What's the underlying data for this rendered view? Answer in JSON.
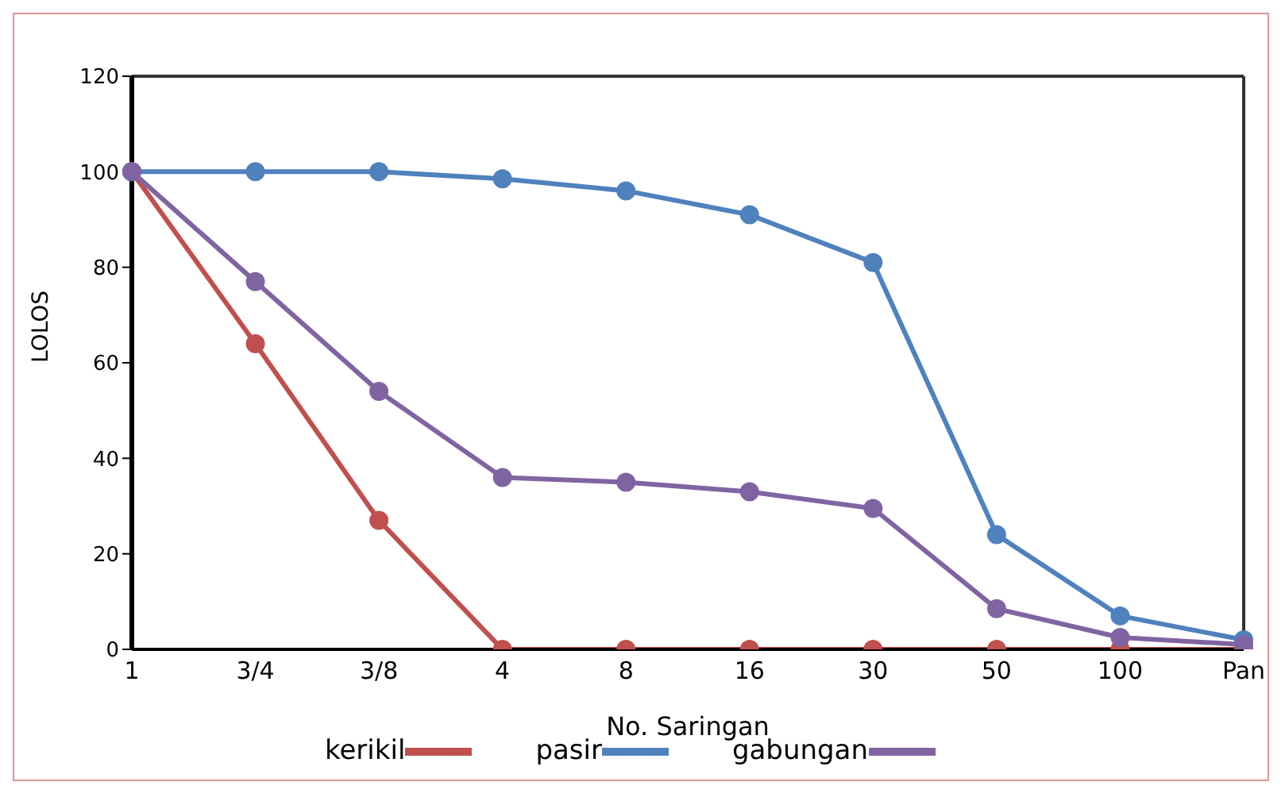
{
  "chart_data": {
    "type": "line",
    "xlabel": "No. Saringan",
    "ylabel": "LOLOS",
    "categories": [
      "1",
      "3/4",
      "3/8",
      "4",
      "8",
      "16",
      "30",
      "50",
      "100",
      "Pan"
    ],
    "series": [
      {
        "name": "kerikil",
        "color": "#c0504d",
        "values": [
          100,
          64,
          27,
          0,
          0,
          0,
          0,
          0,
          0,
          0
        ]
      },
      {
        "name": "pasir",
        "color": "#4f81bd",
        "values": [
          100,
          100,
          100,
          98.5,
          96,
          91,
          81,
          24,
          7,
          2
        ]
      },
      {
        "name": "gabungan",
        "color": "#8064a2",
        "values": [
          100,
          77,
          54,
          36,
          35,
          33,
          29.5,
          8.5,
          2.5,
          1
        ]
      }
    ],
    "ylim": [
      0,
      120
    ],
    "yticks": [
      0,
      20,
      40,
      60,
      80,
      100,
      120
    ],
    "grid": false,
    "legend": "bottom",
    "marker": "circle",
    "line_style": "solid"
  }
}
